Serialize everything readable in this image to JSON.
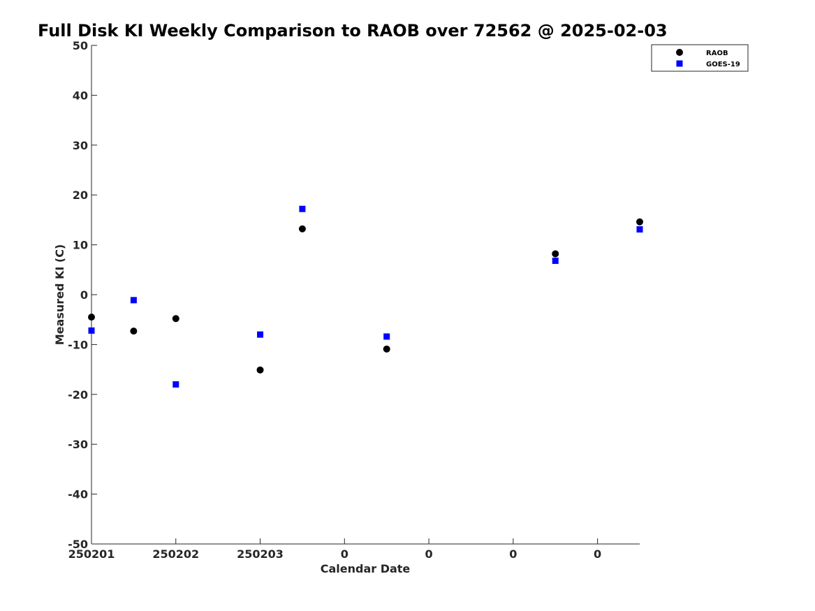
{
  "chart_data": {
    "type": "scatter",
    "title": "Full Disk KI Weekly Comparison to RAOB over 72562 @ 2025-02-03",
    "xlabel": "Calendar Date",
    "ylabel": "Measured KI (C)",
    "xlim": [
      0,
      13
    ],
    "ylim": [
      -50,
      50
    ],
    "x_ticks": [
      0,
      2,
      4,
      6,
      8,
      10,
      12
    ],
    "x_tick_labels": [
      "250201",
      "250202",
      "250203",
      "0",
      "0",
      "0",
      "0"
    ],
    "y_ticks": [
      -50,
      -40,
      -30,
      -20,
      -10,
      0,
      10,
      20,
      30,
      40,
      50
    ],
    "y_tick_labels": [
      "-50",
      "-40",
      "-30",
      "-20",
      "-10",
      "0",
      "10",
      "20",
      "30",
      "40",
      "50"
    ],
    "grid": false,
    "legend_position": "top-right",
    "series": [
      {
        "name": "RAOB",
        "marker": "circle",
        "color": "#000000",
        "x": [
          0,
          1,
          2,
          4,
          5,
          7,
          11,
          13
        ],
        "y": [
          -4.5,
          -7.3,
          -4.8,
          -15.1,
          13.2,
          -10.9,
          8.2,
          14.6
        ]
      },
      {
        "name": "GOES-19",
        "marker": "square",
        "color": "#0000ff",
        "x": [
          0,
          1,
          2,
          4,
          5,
          7,
          11,
          13
        ],
        "y": [
          -7.2,
          -1.1,
          -18.0,
          -8.0,
          17.2,
          -8.4,
          6.8,
          13.1
        ]
      }
    ]
  }
}
